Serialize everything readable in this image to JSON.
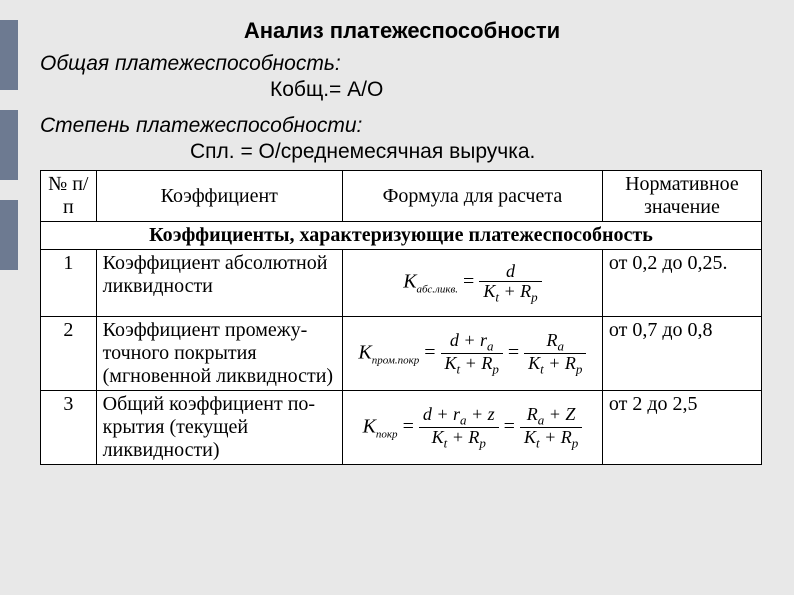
{
  "decor": {
    "tab_color": "#6d7a91",
    "bg_color": "#e8e8e8"
  },
  "title": "Анализ платежеспособности",
  "general": {
    "label": "Общая платежеспособность:",
    "formula": "Кобщ.= А/О"
  },
  "degree": {
    "label": "Степень платежеспособности:",
    "formula": "Спл. = О/среднемесячная выручка."
  },
  "table": {
    "headers": {
      "num": "№ п/п",
      "coef": "Коэффициент",
      "formula": "Формула для расчета",
      "norm": "Нормативное значение"
    },
    "section": "Коэффициенты, характеризующие платежеспособность",
    "rows": [
      {
        "num": "1",
        "coef": "Коэффициент абсолютной ликвидности",
        "k_sub": "абс.ликв.",
        "frac1_num": "d",
        "frac1_den_parts": [
          "K",
          "t",
          " + R",
          "p"
        ],
        "has_second": false,
        "norm": "от 0,2 до 0,25."
      },
      {
        "num": "2",
        "coef": "Коэффициент промежу­точного покрытия (мгновенной ликвидности)",
        "k_sub": "пром.покр",
        "frac1_num_parts": [
          "d + r",
          "a"
        ],
        "frac1_den_parts": [
          "K",
          "t",
          " + R",
          "p"
        ],
        "has_second": true,
        "frac2_num_parts": [
          "R",
          "a"
        ],
        "frac2_den_parts": [
          "K",
          "t",
          " + R",
          "p"
        ],
        "norm": "от 0,7 до 0,8"
      },
      {
        "num": "3",
        "coef": "Общий коэффициент по­крытия (текущей ликвидности)",
        "k_sub": "покр",
        "frac1_num_parts": [
          "d + r",
          "a",
          " + z"
        ],
        "frac1_den_parts": [
          "K",
          "t",
          " + R",
          "p"
        ],
        "has_second": true,
        "frac2_num_parts": [
          "R",
          "a",
          " + Z"
        ],
        "frac2_den_parts": [
          "K",
          "t",
          " + R",
          "p"
        ],
        "norm": "от 2 до 2,5"
      }
    ]
  }
}
